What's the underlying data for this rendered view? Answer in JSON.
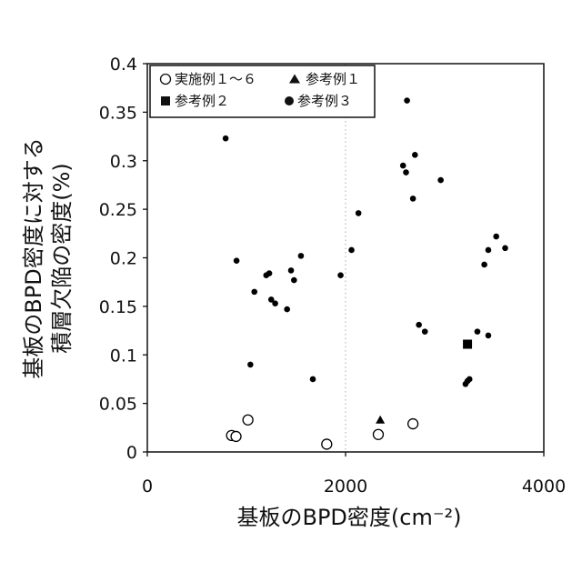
{
  "chart_data": {
    "type": "scatter",
    "xlabel": "基板のBPD密度(cm⁻²)",
    "ylabel_line1": "基板のBPD密度に対する",
    "ylabel_line2": "積層欠陥の密度(%)",
    "xlim": [
      0,
      4000
    ],
    "ylim": [
      0,
      0.4
    ],
    "xticks": [
      0,
      2000,
      4000
    ],
    "yticks": [
      0,
      0.05,
      0.1,
      0.15,
      0.2,
      0.25,
      0.3,
      0.35,
      0.4
    ],
    "xtick_labels": [
      "0",
      "2000",
      "4000"
    ],
    "ytick_labels": [
      "0",
      "0.05",
      "0.1",
      "0.15",
      "0.2",
      "0.25",
      "0.3",
      "0.35",
      "0.4"
    ],
    "grid": "vertical dotted at x = 2000",
    "legend_position": "top-left",
    "colors": {
      "axis": "#111111",
      "marker": "#000000",
      "grid": "#aaaaaa"
    },
    "series": [
      {
        "name": "実施例１～６",
        "marker": "open-circle",
        "points": [
          [
            850,
            0.017
          ],
          [
            895,
            0.016
          ],
          [
            1015,
            0.033
          ],
          [
            1810,
            0.008
          ],
          [
            2330,
            0.018
          ],
          [
            2680,
            0.029
          ]
        ]
      },
      {
        "name": "参考例１",
        "marker": "filled-triangle",
        "points": [
          [
            2350,
            0.033
          ]
        ]
      },
      {
        "name": "参考例２",
        "marker": "filled-square",
        "points": [
          [
            3230,
            0.111
          ]
        ]
      },
      {
        "name": "参考例３",
        "marker": "filled-circle",
        "points": [
          [
            790,
            0.323
          ],
          [
            900,
            0.197
          ],
          [
            1040,
            0.09
          ],
          [
            1080,
            0.165
          ],
          [
            1200,
            0.182
          ],
          [
            1230,
            0.184
          ],
          [
            1250,
            0.157
          ],
          [
            1290,
            0.153
          ],
          [
            1410,
            0.147
          ],
          [
            1450,
            0.187
          ],
          [
            1480,
            0.177
          ],
          [
            1550,
            0.202
          ],
          [
            1670,
            0.075
          ],
          [
            1950,
            0.182
          ],
          [
            2060,
            0.208
          ],
          [
            2130,
            0.246
          ],
          [
            2580,
            0.295
          ],
          [
            2610,
            0.288
          ],
          [
            2620,
            0.362
          ],
          [
            2680,
            0.261
          ],
          [
            2700,
            0.306
          ],
          [
            2740,
            0.131
          ],
          [
            2800,
            0.124
          ],
          [
            2960,
            0.28
          ],
          [
            3210,
            0.07
          ],
          [
            3230,
            0.073
          ],
          [
            3250,
            0.075
          ],
          [
            3330,
            0.124
          ],
          [
            3400,
            0.193
          ],
          [
            3440,
            0.208
          ],
          [
            3440,
            0.12
          ],
          [
            3520,
            0.222
          ],
          [
            3610,
            0.21
          ]
        ]
      }
    ]
  }
}
